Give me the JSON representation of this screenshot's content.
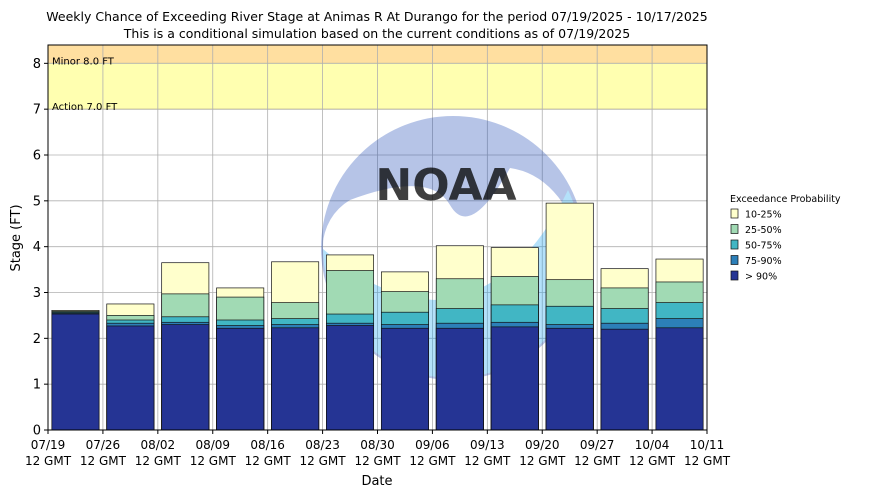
{
  "chart_data": {
    "type": "bar",
    "title": "Weekly Chance of Exceeding River Stage at Animas R At Durango for the period 07/19/2025 - 10/17/2025",
    "subtitle": "This is a conditional simulation based on the current conditions as of 07/19/2025",
    "xlabel": "Date",
    "ylabel": "Stage (FT)",
    "ylim": [
      0,
      8.4
    ],
    "yticks": [
      "0",
      "1",
      "2",
      "3",
      "4",
      "5",
      "6",
      "7",
      "8"
    ],
    "grid": true,
    "x_ticks": [
      {
        "date": "07/19",
        "time": "12 GMT"
      },
      {
        "date": "07/26",
        "time": "12 GMT"
      },
      {
        "date": "08/02",
        "time": "12 GMT"
      },
      {
        "date": "08/09",
        "time": "12 GMT"
      },
      {
        "date": "08/16",
        "time": "12 GMT"
      },
      {
        "date": "08/23",
        "time": "12 GMT"
      },
      {
        "date": "08/30",
        "time": "12 GMT"
      },
      {
        "date": "09/06",
        "time": "12 GMT"
      },
      {
        "date": "09/13",
        "time": "12 GMT"
      },
      {
        "date": "09/20",
        "time": "12 GMT"
      },
      {
        "date": "09/27",
        "time": "12 GMT"
      },
      {
        "date": "10/04",
        "time": "12 GMT"
      },
      {
        "date": "10/11",
        "time": "12 GMT"
      }
    ],
    "thresholds": [
      {
        "label": "Minor 8.0 FT",
        "value": 8.0,
        "color": "#ffdfa0"
      },
      {
        "label": "Action 7.0 FT",
        "value": 7.0,
        "color": "#ffffb0"
      }
    ],
    "legend": {
      "title": "Exceedance Probability",
      "placement": "right",
      "entries": [
        {
          "label": "10-25%",
          "color": "#ffffcc"
        },
        {
          "label": "25-50%",
          "color": "#a1dab4"
        },
        {
          "label": "50-75%",
          "color": "#41b6c4"
        },
        {
          "label": "75-90%",
          "color": "#2c7fb8"
        },
        {
          "label": "> 90%",
          "color": "#253494"
        }
      ]
    },
    "series": [
      {
        "name": "> 90%",
        "values": [
          2.53,
          2.27,
          2.3,
          2.22,
          2.23,
          2.28,
          2.22,
          2.22,
          2.25,
          2.22,
          2.2,
          2.23
        ]
      },
      {
        "name": "75-90%",
        "values": [
          2.55,
          2.33,
          2.35,
          2.28,
          2.3,
          2.33,
          2.3,
          2.33,
          2.35,
          2.3,
          2.33,
          2.43
        ]
      },
      {
        "name": "50-75%",
        "values": [
          2.57,
          2.4,
          2.47,
          2.4,
          2.43,
          2.53,
          2.57,
          2.65,
          2.73,
          2.7,
          2.65,
          2.78
        ]
      },
      {
        "name": "25-50%",
        "values": [
          2.59,
          2.5,
          2.97,
          2.9,
          2.78,
          3.48,
          3.02,
          3.3,
          3.35,
          3.28,
          3.1,
          3.23
        ]
      },
      {
        "name": "10-25%",
        "values": [
          2.61,
          2.75,
          3.65,
          3.1,
          3.67,
          3.82,
          3.45,
          4.02,
          3.98,
          4.95,
          3.52,
          3.73
        ]
      }
    ]
  }
}
